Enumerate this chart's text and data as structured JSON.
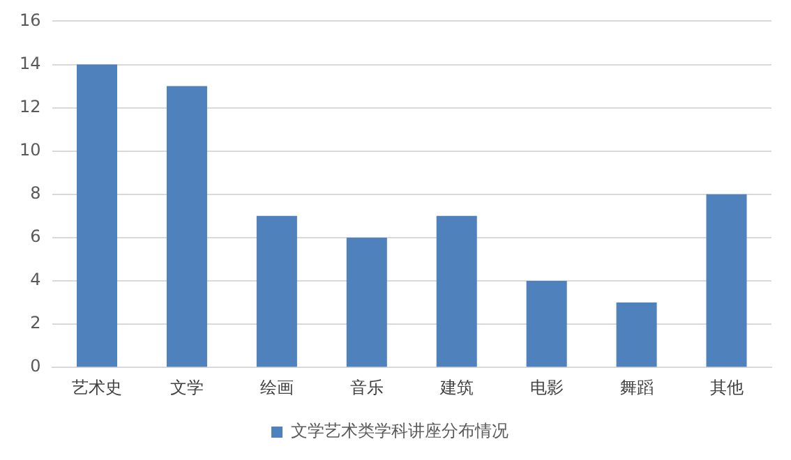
{
  "chart_data": {
    "type": "bar",
    "categories": [
      "艺术史",
      "文学",
      "绘画",
      "音乐",
      "建筑",
      "电影",
      "舞蹈",
      "其他"
    ],
    "series": [
      {
        "name": "文学艺术类学科讲座分布情况",
        "color": "#4f81bd",
        "values": [
          14,
          13,
          7,
          6,
          7,
          4,
          3,
          8
        ]
      }
    ],
    "ylim": [
      0,
      16
    ],
    "yticks": [
      0,
      2,
      4,
      6,
      8,
      10,
      12,
      14,
      16
    ],
    "grid": "y",
    "legend": "bottom"
  }
}
